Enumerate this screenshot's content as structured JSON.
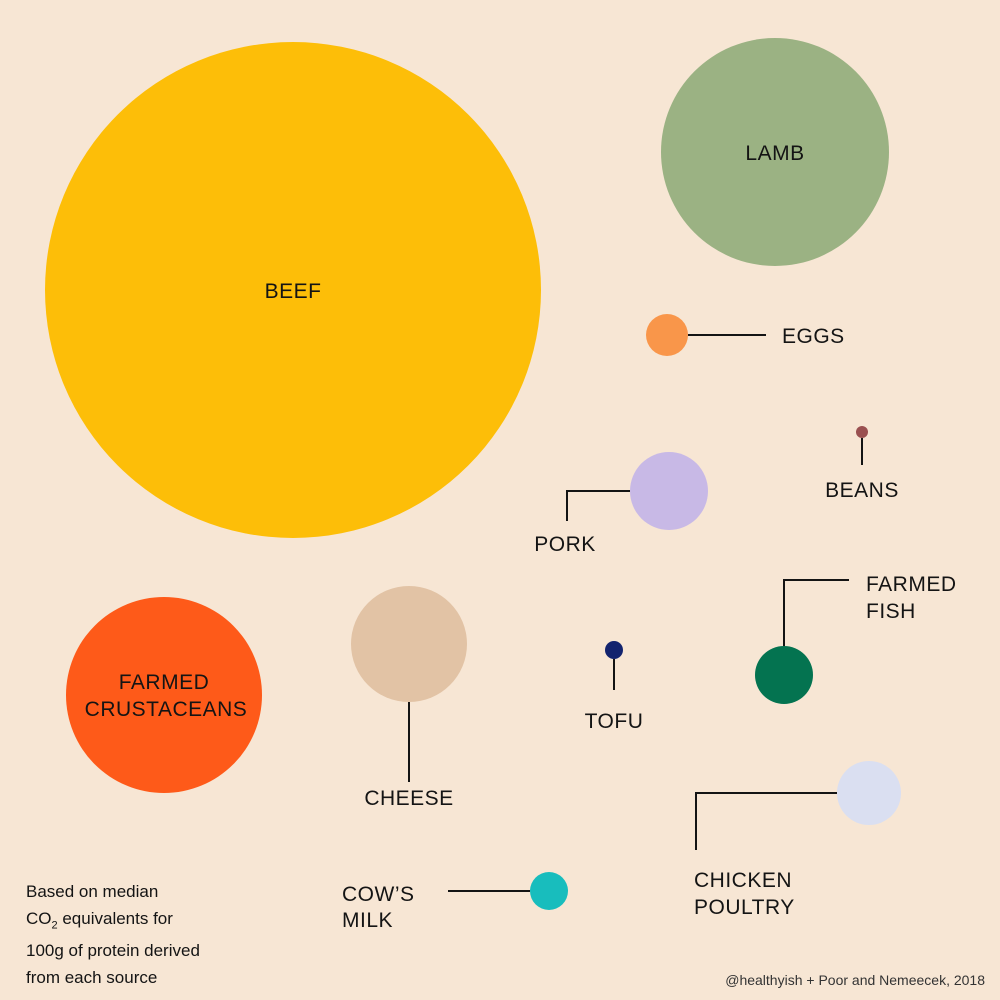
{
  "chart_data": {
    "type": "bubble",
    "title": "",
    "items": [
      {
        "name": "beef",
        "label": [
          "BEEF"
        ],
        "color": "#FDBE08"
      },
      {
        "name": "lamb",
        "label": [
          "LAMB"
        ],
        "color": "#9BB283"
      },
      {
        "name": "eggs",
        "label": [
          "EGGS"
        ],
        "color": "#F9964A"
      },
      {
        "name": "beans",
        "label": [
          "BEANS"
        ],
        "color": "#9A5050"
      },
      {
        "name": "pork",
        "label": [
          "PORK"
        ],
        "color": "#C8B9E6"
      },
      {
        "name": "farmed-fish",
        "label": [
          "FARMED",
          "FISH"
        ],
        "color": "#047350"
      },
      {
        "name": "tofu",
        "label": [
          "TOFU"
        ],
        "color": "#13236E"
      },
      {
        "name": "farmed-crustaceans",
        "label": [
          "FARMED",
          "CRUSTACEANS"
        ],
        "color": "#FE5A19"
      },
      {
        "name": "cheese",
        "label": [
          "CHEESE"
        ],
        "color": "#E2C3A5"
      },
      {
        "name": "chicken-poultry",
        "label": [
          "CHICKEN",
          "POULTRY"
        ],
        "color": "#DADFF1"
      },
      {
        "name": "cows-milk",
        "label": [
          "COW’S",
          "MILK"
        ],
        "color": "#18BDBD"
      }
    ]
  },
  "footnote": {
    "line1": "Based on median",
    "line2_prefix": "CO",
    "line2_sub": "2",
    "line2_suffix": " equivalents for",
    "line3": "100g of protein derived",
    "line4": "from each source"
  },
  "credit": "@healthyish + Poor and Nemeecek, 2018"
}
